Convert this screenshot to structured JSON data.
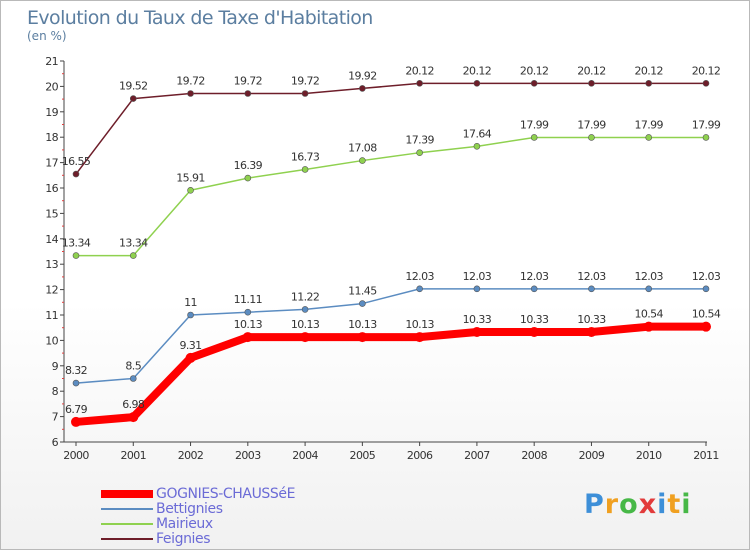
{
  "chart_data": {
    "type": "line",
    "title": "Evolution du Taux de Taxe d'Habitation",
    "unit_label": "(en %)",
    "x": [
      "2000",
      "2001",
      "2002",
      "2003",
      "2004",
      "2005",
      "2006",
      "2007",
      "2008",
      "2009",
      "2010",
      "2011"
    ],
    "ylim": [
      6,
      21
    ],
    "yticks": [
      "6",
      "7",
      "8",
      "9",
      "10",
      "11",
      "12",
      "13",
      "14",
      "15",
      "16",
      "17",
      "18",
      "19",
      "20",
      "21"
    ],
    "grid": false,
    "legend_position": "bottom-left",
    "series": [
      {
        "name": "Feignies",
        "color": "#6e1e2a",
        "values": [
          16.55,
          19.52,
          19.72,
          19.72,
          19.72,
          19.92,
          20.12,
          20.12,
          20.12,
          20.12,
          20.12,
          20.12
        ],
        "labels": [
          "16.55",
          "19.52",
          "19.72",
          "19.72",
          "19.72",
          "19.92",
          "20.12",
          "20.12",
          "20.12",
          "20.12",
          "20.12",
          "20.12"
        ]
      },
      {
        "name": "Mairieux",
        "color": "#8fd14f",
        "values": [
          13.34,
          13.34,
          15.91,
          16.39,
          16.73,
          17.08,
          17.39,
          17.64,
          17.99,
          17.99,
          17.99,
          17.99
        ],
        "labels": [
          "13.34",
          "13.34",
          "15.91",
          "16.39",
          "16.73",
          "17.08",
          "17.39",
          "17.64",
          "17.99",
          "17.99",
          "17.99",
          "17.99"
        ]
      },
      {
        "name": "Bettignies",
        "color": "#5b8cc1",
        "values": [
          8.32,
          8.5,
          11,
          11.11,
          11.22,
          11.45,
          12.03,
          12.03,
          12.03,
          12.03,
          12.03,
          12.03
        ],
        "labels": [
          "8.32",
          "8.5",
          "11",
          "11.11",
          "11.22",
          "11.45",
          "12.03",
          "12.03",
          "12.03",
          "12.03",
          "12.03",
          "12.03"
        ]
      },
      {
        "name": "GOGNIES-CHAUSSéE",
        "color": "#ff0000",
        "values": [
          6.79,
          6.98,
          9.31,
          10.13,
          10.13,
          10.13,
          10.13,
          10.33,
          10.33,
          10.33,
          10.54,
          10.54
        ],
        "labels": [
          "6.79",
          "6.98",
          "9.31",
          "10.13",
          "10.13",
          "10.13",
          "10.13",
          "10.33",
          "10.33",
          "10.33",
          "10.54",
          "10.54"
        ]
      }
    ]
  },
  "legend": [
    {
      "label": "GOGNIES-CHAUSSéE",
      "color": "#ff0000"
    },
    {
      "label": "Bettignies",
      "color": "#5b8cc1"
    },
    {
      "label": "Mairieux",
      "color": "#8fd14f"
    },
    {
      "label": "Feignies",
      "color": "#6e1e2a"
    }
  ],
  "logo": {
    "letters": [
      "P",
      "r",
      "o",
      "x",
      "i",
      "t",
      "i"
    ],
    "colors": [
      "#3d8fd8",
      "#f0a020",
      "#47b847",
      "#e23b3b",
      "#3d8fd8",
      "#f0a020",
      "#47b847"
    ]
  }
}
